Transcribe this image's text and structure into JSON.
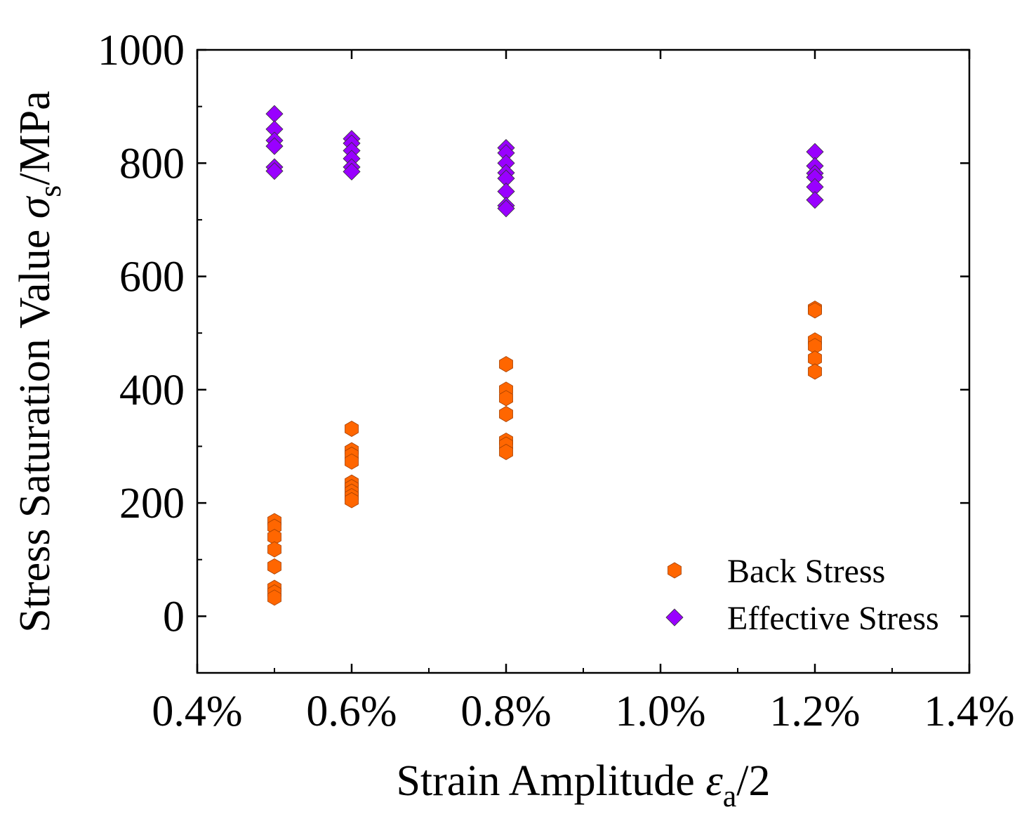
{
  "chart_data": {
    "type": "scatter",
    "title": "",
    "xlabel": {
      "main": "Strain Amplitude ",
      "symbol": "ε",
      "subscript": "a",
      "suffix": "/2"
    },
    "ylabel": {
      "main": "Stress Saturation  Value ",
      "symbol": "σ",
      "subscript": "s",
      "suffix": "/MPa"
    },
    "xlim": [
      0.4,
      1.4
    ],
    "ylim": [
      -100,
      1000
    ],
    "xticks": [
      0.4,
      0.6,
      0.8,
      1.0,
      1.2,
      1.4
    ],
    "xtick_labels": [
      "0.4%",
      "0.6%",
      "0.8%",
      "1.0%",
      "1.2%",
      "1.4%"
    ],
    "yticks": [
      0,
      200,
      400,
      600,
      800,
      1000
    ],
    "ytick_labels": [
      "0",
      "200",
      "400",
      "600",
      "800",
      "1000"
    ],
    "grid": false,
    "legend_position": "bottom-right",
    "series": [
      {
        "name": "Back Stress",
        "marker": "hexagon",
        "color": "#FF6600",
        "points": [
          [
            0.5,
            168
          ],
          [
            0.5,
            158
          ],
          [
            0.5,
            140
          ],
          [
            0.5,
            118
          ],
          [
            0.5,
            88
          ],
          [
            0.5,
            50
          ],
          [
            0.5,
            42
          ],
          [
            0.5,
            33
          ],
          [
            0.6,
            331
          ],
          [
            0.6,
            293
          ],
          [
            0.6,
            285
          ],
          [
            0.6,
            273
          ],
          [
            0.6,
            236
          ],
          [
            0.6,
            228
          ],
          [
            0.6,
            220
          ],
          [
            0.6,
            212
          ],
          [
            0.6,
            205
          ],
          [
            0.8,
            445
          ],
          [
            0.8,
            400
          ],
          [
            0.8,
            385
          ],
          [
            0.8,
            357
          ],
          [
            0.8,
            310
          ],
          [
            0.8,
            303
          ],
          [
            0.8,
            290
          ],
          [
            1.2,
            543
          ],
          [
            1.2,
            540
          ],
          [
            1.2,
            487
          ],
          [
            1.2,
            477
          ],
          [
            1.2,
            455
          ],
          [
            1.2,
            432
          ]
        ]
      },
      {
        "name": "Effective Stress",
        "marker": "diamond",
        "color": "#9900FF",
        "points": [
          [
            0.5,
            887
          ],
          [
            0.5,
            860
          ],
          [
            0.5,
            840
          ],
          [
            0.5,
            830
          ],
          [
            0.5,
            793
          ],
          [
            0.5,
            786
          ],
          [
            0.6,
            843
          ],
          [
            0.6,
            835
          ],
          [
            0.6,
            822
          ],
          [
            0.6,
            808
          ],
          [
            0.6,
            793
          ],
          [
            0.6,
            785
          ],
          [
            0.8,
            827
          ],
          [
            0.8,
            818
          ],
          [
            0.8,
            800
          ],
          [
            0.8,
            783
          ],
          [
            0.8,
            773
          ],
          [
            0.8,
            750
          ],
          [
            0.8,
            725
          ],
          [
            0.8,
            720
          ],
          [
            1.2,
            820
          ],
          [
            1.2,
            795
          ],
          [
            1.2,
            782
          ],
          [
            1.2,
            775
          ],
          [
            1.2,
            758
          ],
          [
            1.2,
            735
          ]
        ]
      }
    ]
  }
}
